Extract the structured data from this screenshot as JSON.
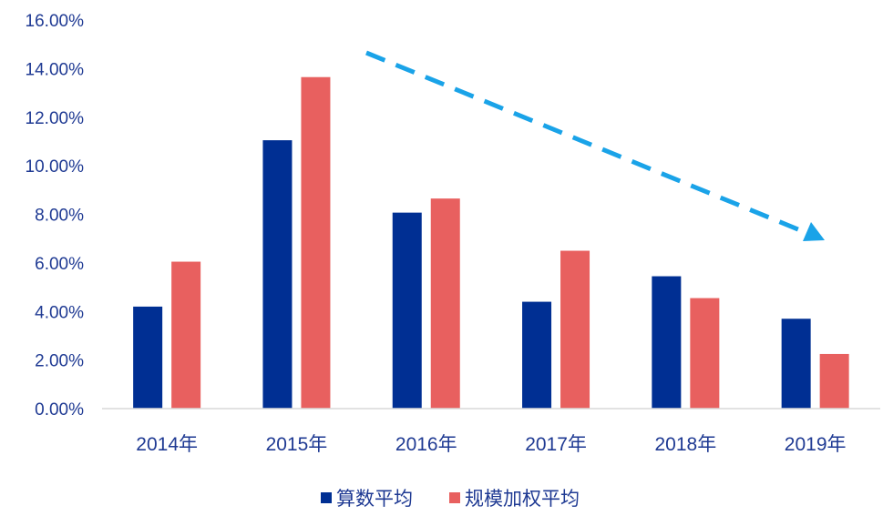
{
  "chart_data": {
    "type": "bar",
    "categories": [
      "2014年",
      "2015年",
      "2016年",
      "2017年",
      "2018年",
      "2019年"
    ],
    "series": [
      {
        "name": "算数平均",
        "values": [
          4.2,
          11.05,
          8.07,
          4.4,
          5.45,
          3.7
        ],
        "color": "#002f93"
      },
      {
        "name": "规模加权平均",
        "values": [
          6.05,
          13.65,
          8.65,
          6.5,
          4.55,
          2.25
        ],
        "color": "#e8605f"
      }
    ],
    "y_ticks": [
      "0.00%",
      "2.00%",
      "4.00%",
      "6.00%",
      "8.00%",
      "10.00%",
      "12.00%",
      "14.00%",
      "16.00%"
    ],
    "ylim": [
      0,
      16
    ],
    "y_unit": "%",
    "grid": false,
    "legend_position": "bottom-center",
    "annotation": {
      "type": "dashed-arrow",
      "description": "downward trend",
      "color": "#1aa3e8"
    },
    "title": "",
    "xlabel": "",
    "ylabel": ""
  }
}
